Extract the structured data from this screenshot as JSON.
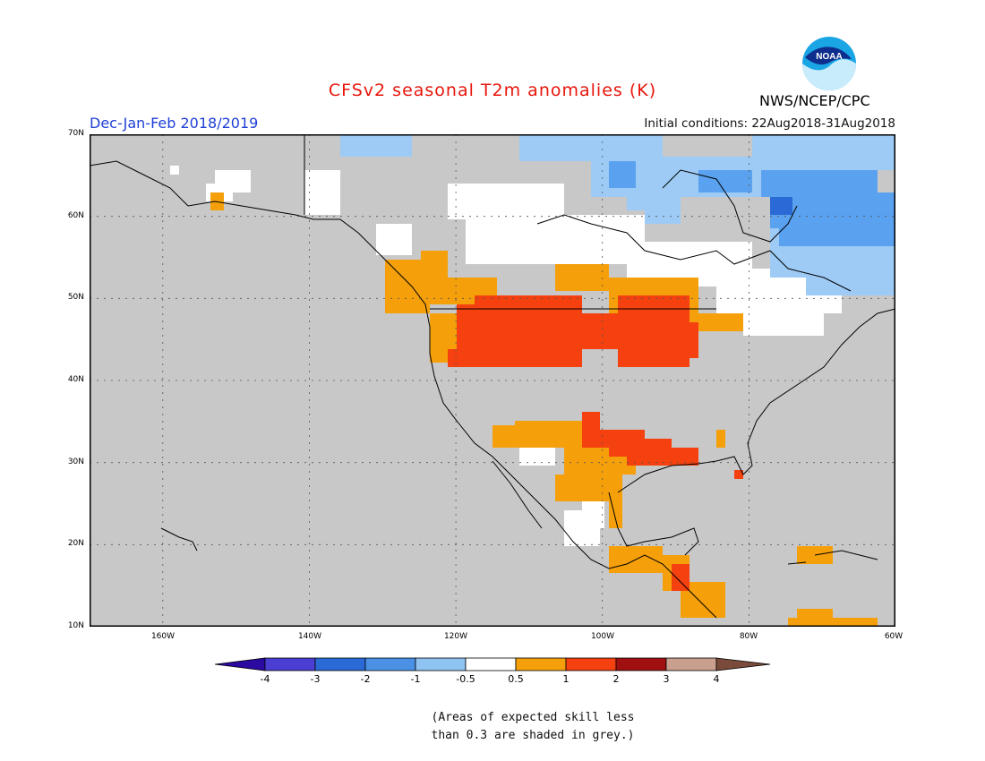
{
  "header": {
    "title": "CFSv2 seasonal T2m anomalies (K)",
    "period": "Dec-Jan-Feb 2018/2019",
    "initial_conditions": "Initial conditions: 22Aug2018-31Aug2018",
    "agency": "NWS/NCEP/CPC",
    "logo_text": "NOAA"
  },
  "map": {
    "lat_labels": [
      "70N",
      "60N",
      "50N",
      "40N",
      "30N",
      "20N",
      "10N"
    ],
    "lon_labels": [
      "160W",
      "140W",
      "120W",
      "100W",
      "80W",
      "60W"
    ],
    "colors": {
      "grey_low_skill": "#c8c8c8",
      "neutral": "#ffffff",
      "cold_-1_-0.5": "#9ecbf5",
      "cold_-2_-1": "#5aa2ef",
      "warm_0.5_1": "#f5a00a",
      "warm_1_2": "#f5400f",
      "land_outline": "#000000"
    }
  },
  "colorbar": {
    "labels": [
      "-4",
      "-3",
      "-2",
      "-1",
      "-0.5",
      "0.5",
      "1",
      "2",
      "3",
      "4"
    ],
    "colors": [
      "#2a0aa0",
      "#4a3fd2",
      "#2a6ad6",
      "#4a91e6",
      "#8fc3f2",
      "#ffffff",
      "#f5a00a",
      "#f5400f",
      "#a01010",
      "#c9a08e",
      "#7a4a3a"
    ]
  },
  "note": {
    "line1": "(Areas of expected skill less",
    "line2": "than 0.3 are shaded in grey.)"
  }
}
